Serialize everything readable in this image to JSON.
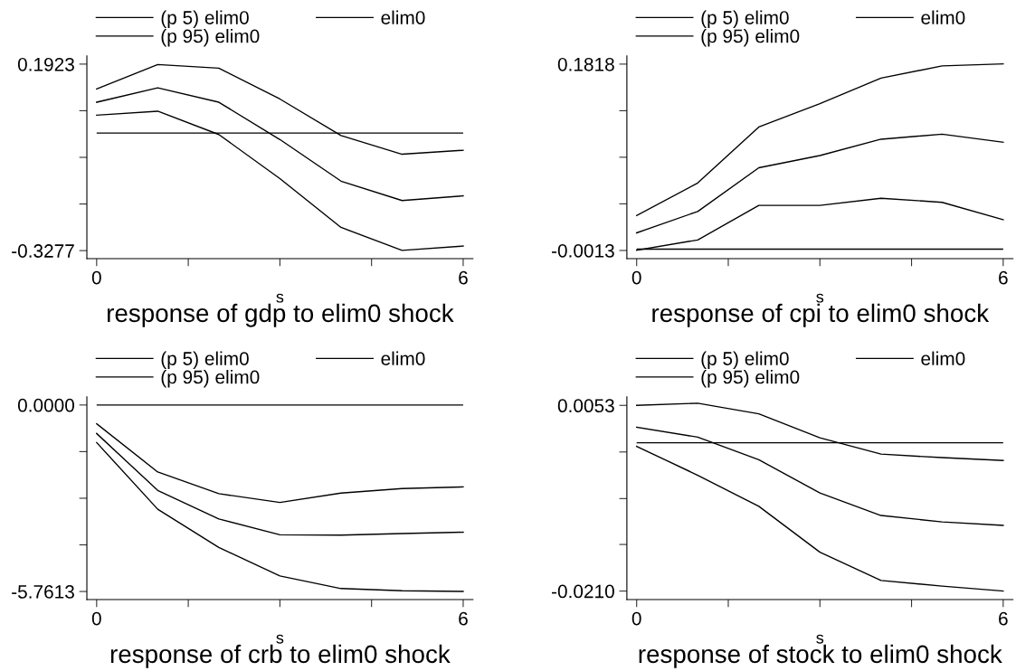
{
  "chart_data": [
    {
      "type": "line",
      "title": "response of gdp to elim0 shock",
      "xlabel": "s",
      "x": [
        0,
        1,
        2,
        3,
        4,
        5,
        6
      ],
      "legend": "top",
      "series": [
        {
          "name": "(p 5) elim0",
          "color": "#000000",
          "values": [
            0.05,
            0.061,
            -0.004,
            -0.127,
            -0.263,
            -0.327,
            -0.315
          ]
        },
        {
          "name": "elim0",
          "color": "#000000",
          "values": [
            0.086,
            0.126,
            0.086,
            -0.018,
            -0.134,
            -0.188,
            -0.175
          ]
        },
        {
          "name": "(p 95) elim0",
          "color": "#000000",
          "values": [
            0.123,
            0.191,
            0.181,
            0.095,
            -0.007,
            -0.059,
            -0.048
          ]
        }
      ],
      "ref_lines": [
        {
          "axis": "y",
          "value": 0,
          "color": "#000000"
        }
      ],
      "xlim": [
        -0.16,
        6.16
      ],
      "xticks": [
        0,
        {
          "value": 1.5,
          "label": null
        },
        {
          "value": 3,
          "label": null
        },
        {
          "value": 4.5,
          "label": null
        },
        6
      ],
      "ylim": [
        -0.35,
        0.215
      ],
      "yticks": [
        {
          "value": 0.1923,
          "label": "0.1923"
        },
        {
          "value": 0.0623,
          "label": null
        },
        {
          "value": -0.0677,
          "label": null
        },
        {
          "value": -0.1977,
          "label": null
        },
        {
          "value": -0.3277,
          "label": "-0.3277"
        }
      ]
    },
    {
      "type": "line",
      "title": "response of cpi to elim0 shock",
      "xlabel": "s",
      "x": [
        0,
        1,
        2,
        3,
        4,
        5,
        6
      ],
      "legend": "top",
      "series": [
        {
          "name": "(p 5) elim0",
          "color": "#000000",
          "values": [
            -0.001,
            0.009,
            0.043,
            0.043,
            0.05,
            0.046,
            0.029
          ]
        },
        {
          "name": "elim0",
          "color": "#000000",
          "values": [
            0.016,
            0.037,
            0.08,
            0.092,
            0.108,
            0.113,
            0.105
          ]
        },
        {
          "name": "(p 95) elim0",
          "color": "#000000",
          "values": [
            0.033,
            0.065,
            0.12,
            0.143,
            0.168,
            0.18,
            0.182
          ]
        }
      ],
      "ref_lines": [
        {
          "axis": "y",
          "value": 0,
          "color": "#000000"
        }
      ],
      "xlim": [
        -0.16,
        6.16
      ],
      "xticks": [
        0,
        {
          "value": 1.5,
          "label": null
        },
        {
          "value": 3,
          "label": null
        },
        {
          "value": 4.5,
          "label": null
        },
        6
      ],
      "ylim": [
        -0.0093,
        0.1898
      ],
      "yticks": [
        {
          "value": 0.1818,
          "label": "0.1818"
        },
        {
          "value": 0.136,
          "label": null
        },
        {
          "value": 0.0903,
          "label": null
        },
        {
          "value": 0.0445,
          "label": null
        },
        {
          "value": -0.0013,
          "label": "-0.0013"
        }
      ]
    },
    {
      "type": "line",
      "title": "response of crb to elim0 shock",
      "xlabel": "s",
      "x": [
        0,
        1,
        2,
        3,
        4,
        5,
        6
      ],
      "legend": "top",
      "series": [
        {
          "name": "(p 5) elim0",
          "color": "#000000",
          "values": [
            -1.16,
            -3.22,
            -4.4,
            -5.28,
            -5.67,
            -5.74,
            -5.76
          ]
        },
        {
          "name": "elim0",
          "color": "#000000",
          "values": [
            -0.88,
            -2.64,
            -3.52,
            -4.01,
            -4.02,
            -3.97,
            -3.93
          ]
        },
        {
          "name": "(p 95) elim0",
          "color": "#000000",
          "values": [
            -0.58,
            -2.07,
            -2.74,
            -3.01,
            -2.72,
            -2.58,
            -2.53
          ]
        }
      ],
      "ref_lines": [
        {
          "axis": "y",
          "value": 0,
          "color": "#000000"
        }
      ],
      "xlim": [
        -0.16,
        6.16
      ],
      "xticks": [
        0,
        {
          "value": 1.5,
          "label": null
        },
        {
          "value": 3,
          "label": null
        },
        {
          "value": 4.5,
          "label": null
        },
        6
      ],
      "ylim": [
        -6.01,
        0.25
      ],
      "yticks": [
        {
          "value": 0,
          "label": "0.0000"
        },
        {
          "value": -1.4403,
          "label": null
        },
        {
          "value": -2.8807,
          "label": null
        },
        {
          "value": -4.321,
          "label": null
        },
        {
          "value": -5.7613,
          "label": "-5.7613"
        }
      ]
    },
    {
      "type": "line",
      "title": "response of stock to elim0 shock",
      "xlabel": "s",
      "x": [
        0,
        1,
        2,
        3,
        4,
        5,
        6
      ],
      "legend": "top",
      "series": [
        {
          "name": "(p 5) elim0",
          "color": "#000000",
          "values": [
            -0.0005,
            -0.0046,
            -0.009,
            -0.0155,
            -0.0195,
            -0.0203,
            -0.021
          ]
        },
        {
          "name": "elim0",
          "color": "#000000",
          "values": [
            0.0022,
            0.0008,
            -0.0024,
            -0.0071,
            -0.0103,
            -0.0112,
            -0.0117
          ]
        },
        {
          "name": "(p 95) elim0",
          "color": "#000000",
          "values": [
            0.0053,
            0.0056,
            0.0041,
            0.0007,
            -0.0016,
            -0.0021,
            -0.0025
          ]
        }
      ],
      "ref_lines": [
        {
          "axis": "y",
          "value": 0,
          "color": "#000000"
        }
      ],
      "xlim": [
        -0.16,
        6.16
      ],
      "xticks": [
        0,
        {
          "value": 1.5,
          "label": null
        },
        {
          "value": 3,
          "label": null
        },
        {
          "value": 4.5,
          "label": null
        },
        6
      ],
      "ylim": [
        -0.0222,
        0.0065
      ],
      "yticks": [
        {
          "value": 0.0053,
          "label": "0.0053"
        },
        {
          "value": -0.0013,
          "label": null
        },
        {
          "value": -0.0079,
          "label": null
        },
        {
          "value": -0.0144,
          "label": null
        },
        {
          "value": -0.021,
          "label": "-0.0210"
        }
      ]
    }
  ]
}
